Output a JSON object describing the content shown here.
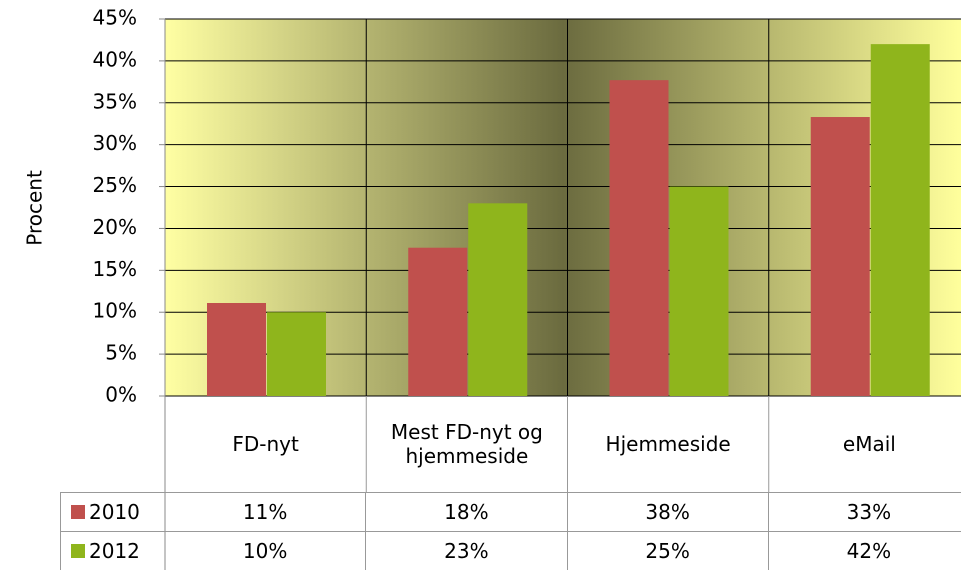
{
  "chart_data": {
    "type": "bar",
    "y_label": "Procent",
    "categories": [
      "FD-nyt",
      "Mest FD-nyt og hjemmeside",
      "Hjemmeside",
      "eMail"
    ],
    "series": [
      {
        "name": "2010",
        "color": "#c0504d",
        "values": [
          11.1,
          17.7,
          37.7,
          33.3
        ],
        "value_labels": [
          "11%",
          "18%",
          "38%",
          "33%"
        ]
      },
      {
        "name": "2012",
        "color": "#8fb51c",
        "values": [
          10,
          23,
          25,
          42
        ],
        "value_labels": [
          "10%",
          "23%",
          "25%",
          "42%"
        ]
      }
    ],
    "ylim": [
      0,
      45
    ],
    "yticks": [
      {
        "value": 0,
        "label": "0%"
      },
      {
        "value": 5,
        "label": "5%"
      },
      {
        "value": 10,
        "label": "10%"
      },
      {
        "value": 15,
        "label": "15%"
      },
      {
        "value": 20,
        "label": "20%"
      },
      {
        "value": 25,
        "label": "25%"
      },
      {
        "value": 30,
        "label": "30%"
      },
      {
        "value": 35,
        "label": "35%"
      },
      {
        "value": 40,
        "label": "40%"
      },
      {
        "value": 45,
        "label": "45%"
      }
    ],
    "grid": true
  }
}
